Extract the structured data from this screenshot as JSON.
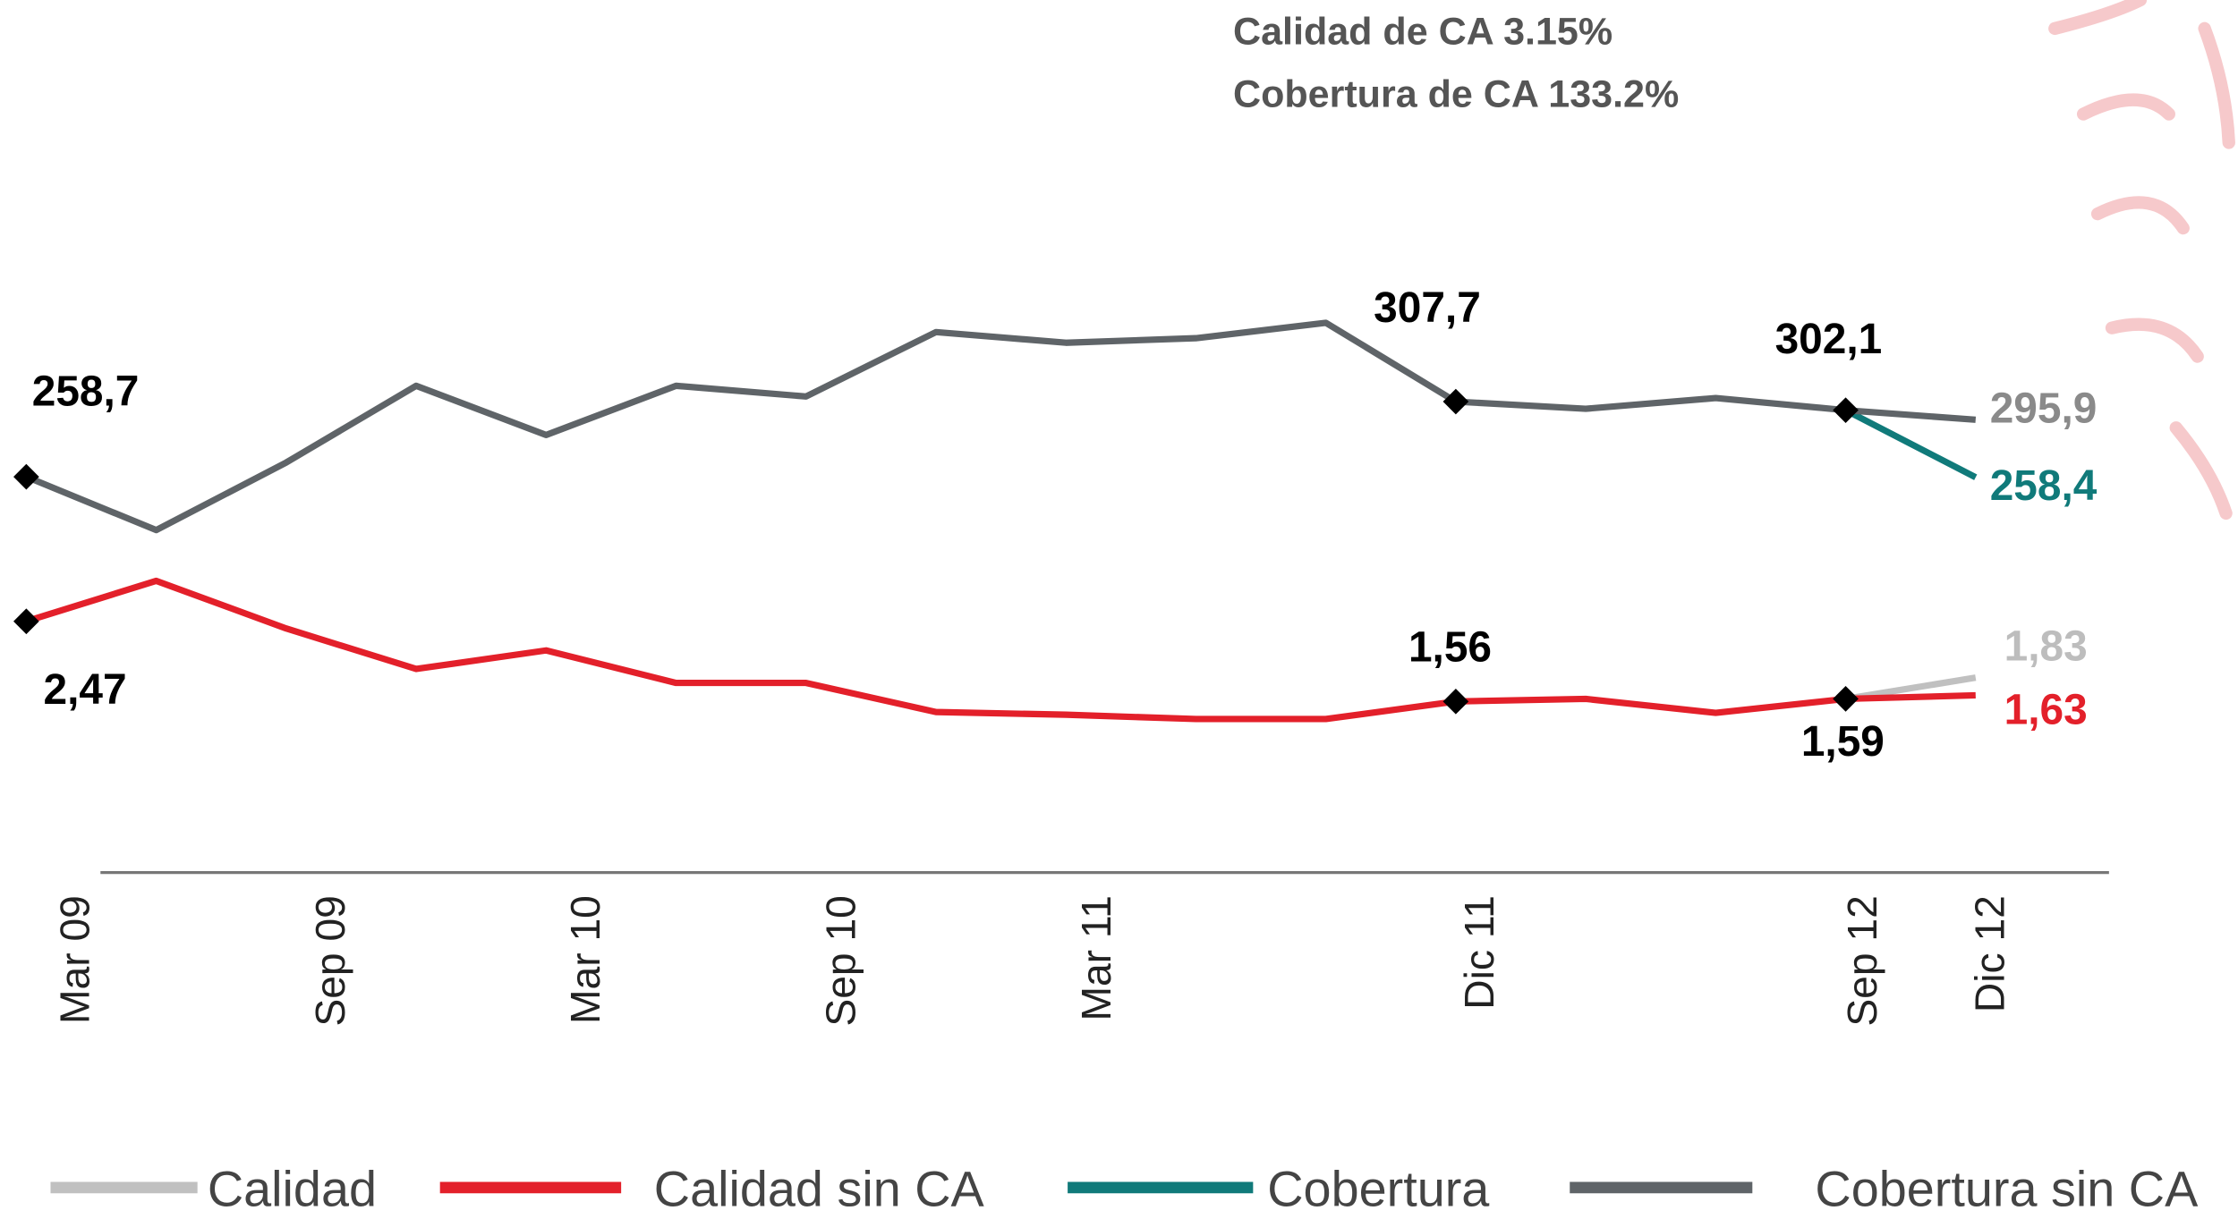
{
  "chart_data": {
    "type": "line",
    "annotations": [
      "Calidad de CA 3.15%",
      "Cobertura de CA 133.2%"
    ],
    "categories": [
      "Mar 09",
      null,
      "Sep 09",
      null,
      "Mar 10",
      null,
      "Sep 10",
      null,
      "Mar 11",
      null,
      null,
      "Dic 11",
      null,
      null,
      "Sep 12",
      "Dic 12"
    ],
    "ylim": [
      0,
      430
    ],
    "y2lim": [
      -0.4,
      7.1
    ],
    "series": [
      {
        "name": "Calidad",
        "color": "#c0c0c0",
        "axis": "y2",
        "values": [
          null,
          null,
          null,
          null,
          null,
          null,
          null,
          null,
          null,
          null,
          null,
          null,
          null,
          null,
          1.59,
          1.83
        ],
        "value_labels": [
          null,
          null,
          null,
          null,
          null,
          null,
          null,
          null,
          null,
          null,
          null,
          null,
          null,
          null,
          null,
          "1,83"
        ]
      },
      {
        "name": "Calidad sin CA",
        "color": "#e3202a",
        "axis": "y2",
        "values": [
          2.47,
          2.93,
          2.39,
          1.93,
          2.14,
          1.77,
          1.77,
          1.44,
          1.41,
          1.36,
          1.36,
          1.56,
          1.59,
          1.43,
          1.59,
          1.63
        ],
        "value_labels": [
          "2,47",
          null,
          null,
          null,
          null,
          null,
          null,
          null,
          null,
          null,
          null,
          "1,56",
          null,
          null,
          "1,59",
          "1,63"
        ]
      },
      {
        "name": "Cobertura",
        "color": "#107a7a",
        "values": [
          null,
          null,
          null,
          null,
          null,
          null,
          null,
          null,
          null,
          null,
          null,
          null,
          null,
          null,
          302.1,
          258.4
        ],
        "value_labels": [
          null,
          null,
          null,
          null,
          null,
          null,
          null,
          null,
          null,
          null,
          null,
          null,
          null,
          null,
          null,
          "258,4"
        ]
      },
      {
        "name": "Cobertura sin CA",
        "color": "#5f6468",
        "values": [
          258.7,
          224,
          268,
          318,
          286,
          318,
          311,
          353,
          346,
          349,
          359,
          307.7,
          303,
          310,
          302.1,
          295.9
        ],
        "value_labels": [
          "258,7",
          null,
          null,
          null,
          null,
          null,
          null,
          null,
          null,
          null,
          null,
          "307,7",
          null,
          null,
          "302,1",
          "295,9"
        ]
      }
    ]
  }
}
